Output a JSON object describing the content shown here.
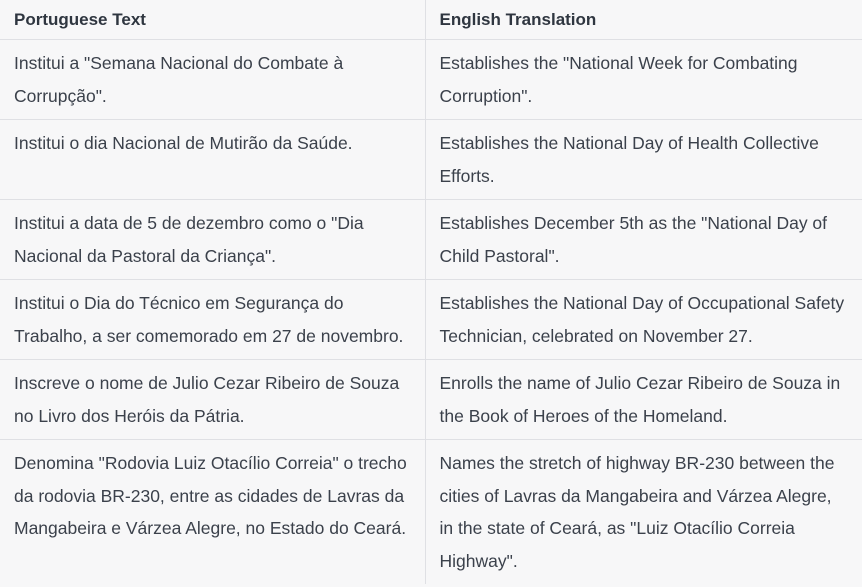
{
  "table": {
    "headers": [
      "Portuguese Text",
      "English Translation"
    ],
    "rows": [
      {
        "pt": "Institui a \"Semana Nacional do Combate à Corrupção\".",
        "en": "Establishes the \"National Week for Combating Corruption\"."
      },
      {
        "pt": "Institui o dia Nacional de Mutirão da Saúde.",
        "en": "Establishes the National Day of Health Collective Efforts."
      },
      {
        "pt": "Institui a data de 5 de dezembro como o \"Dia Nacional da Pastoral da Criança\".",
        "en": "Establishes December 5th as the \"National Day of Child Pastoral\"."
      },
      {
        "pt": "Institui o Dia do Técnico em Segurança do Trabalho, a ser comemorado em 27 de novembro.",
        "en": "Establishes the National Day of Occupational Safety Technician, celebrated on November 27."
      },
      {
        "pt": "Inscreve o nome de Julio Cezar Ribeiro de Souza no Livro dos Heróis da Pátria.",
        "en": "Enrolls the name of Julio Cezar Ribeiro de Souza in the Book of Heroes of the Homeland."
      },
      {
        "pt": "Denomina \"Rodovia Luiz Otacílio Correia\" o trecho da rodovia BR-230, entre as cidades de Lavras da Mangabeira e Várzea Alegre, no Estado do Ceará.",
        "en": "Names the stretch of highway BR-230 between the cities of Lavras da Mangabeira and Várzea Alegre, in the state of Ceará, as \"Luiz Otacílio Correia Highway\"."
      }
    ]
  }
}
